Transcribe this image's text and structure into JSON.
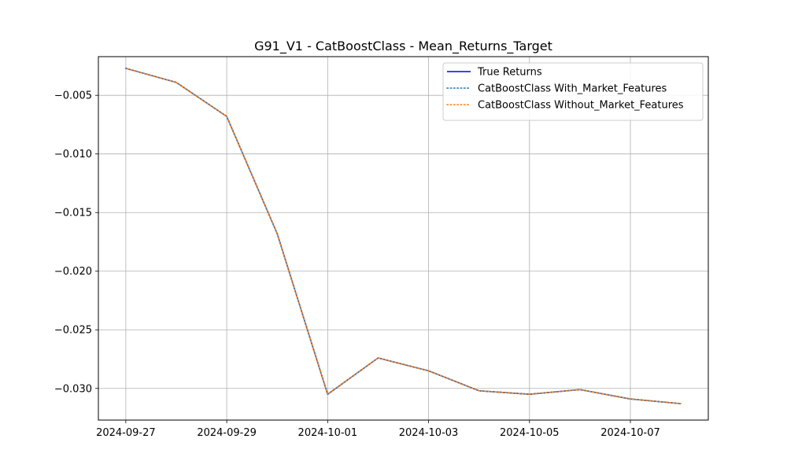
{
  "chart_data": {
    "type": "line",
    "title": "G91_V1 - CatBoostClass - Mean_Returns_Target",
    "xlabel": "",
    "ylabel": "",
    "x": [
      "2024-09-27",
      "2024-09-28",
      "2024-09-29",
      "2024-09-30",
      "2024-10-01",
      "2024-10-02",
      "2024-10-03",
      "2024-10-04",
      "2024-10-05",
      "2024-10-06",
      "2024-10-07",
      "2024-10-08"
    ],
    "xticks": [
      "2024-09-27",
      "2024-09-29",
      "2024-10-01",
      "2024-10-03",
      "2024-10-05",
      "2024-10-07"
    ],
    "ylim": [
      -0.0327,
      -0.0017
    ],
    "yticks": [
      -0.005,
      -0.01,
      -0.015,
      -0.02,
      -0.025,
      -0.03
    ],
    "ytick_labels": [
      "−0.005",
      "−0.010",
      "−0.015",
      "−0.020",
      "−0.025",
      "−0.030"
    ],
    "grid": true,
    "legend_position": "top-right",
    "series": [
      {
        "name": "True Returns",
        "color": "#0000ff",
        "style": "solid",
        "values": [
          -0.0027,
          -0.0039,
          -0.0068,
          -0.0168,
          -0.0305,
          -0.0274,
          -0.0285,
          -0.0302,
          -0.0305,
          -0.0301,
          -0.0309,
          -0.0313
        ]
      },
      {
        "name": "CatBoostClass With_Market_Features",
        "color": "#1f77b4",
        "style": "dotted",
        "values": [
          -0.0027,
          -0.0039,
          -0.0068,
          -0.0168,
          -0.0305,
          -0.0274,
          -0.0285,
          -0.0302,
          -0.0305,
          -0.0301,
          -0.0309,
          -0.0313
        ]
      },
      {
        "name": "CatBoostClass Without_Market_Features",
        "color": "#ff7f0e",
        "style": "dotted",
        "values": [
          -0.0027,
          -0.0039,
          -0.0068,
          -0.0168,
          -0.0305,
          -0.0274,
          -0.0285,
          -0.0302,
          -0.0305,
          -0.0301,
          -0.0309,
          -0.0313
        ]
      }
    ]
  }
}
